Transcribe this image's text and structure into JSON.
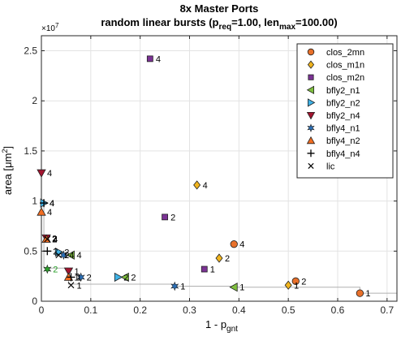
{
  "chart_data": {
    "type": "scatter",
    "title_main": "8x Master Ports",
    "title_sub": {
      "prefix": "random linear bursts (p",
      "sub1": "req",
      "middle": "=1.00, len",
      "sub2": "max",
      "suffix": "=100.00)"
    },
    "xlabel": {
      "base": "1 - p",
      "sub": "gnt"
    },
    "ylabel": {
      "base": "area [",
      "mid": "μm",
      "sup": "2",
      "end": "]"
    },
    "y_exponent_label": "×10",
    "y_exponent": "7",
    "xlim": [
      0,
      0.72
    ],
    "ylim": [
      0,
      2.65
    ],
    "x_ticks": [
      0,
      0.1,
      0.2,
      0.3,
      0.4,
      0.5,
      0.6,
      0.7
    ],
    "x_tick_labels": [
      "0",
      "0.1",
      "0.2",
      "0.3",
      "0.4",
      "0.5",
      "0.6",
      "0.7"
    ],
    "y_ticks": [
      0,
      0.5,
      1,
      1.5,
      2,
      2.5
    ],
    "y_tick_labels": [
      "0",
      "0.5",
      "1",
      "1.5",
      "2",
      "2.5"
    ],
    "grid": true,
    "legend_position": "top-right",
    "pareto_front": [
      [
        0,
        1.28
      ],
      [
        0,
        0.98
      ],
      [
        0.005,
        0.98
      ],
      [
        0.005,
        0.33
      ],
      [
        0.055,
        0.33
      ],
      [
        0.055,
        0.17
      ],
      [
        0.27,
        0.17
      ],
      [
        0.27,
        0.15
      ],
      [
        0.39,
        0.15
      ],
      [
        0.39,
        0.14
      ],
      [
        0.645,
        0.14
      ],
      [
        0.645,
        0.08
      ],
      [
        0.72,
        0.08
      ]
    ],
    "series": [
      {
        "name": "clos_2mn",
        "marker": "circle",
        "color": "#e8702a",
        "points": [
          {
            "x": 0.39,
            "y": 0.57,
            "label": "4"
          },
          {
            "x": 0.515,
            "y": 0.2,
            "label": "2"
          },
          {
            "x": 0.645,
            "y": 0.08,
            "label": "1"
          }
        ]
      },
      {
        "name": "clos_m1n",
        "marker": "diamond",
        "color": "#f0b41e",
        "points": [
          {
            "x": 0.315,
            "y": 1.16,
            "label": "4"
          },
          {
            "x": 0.36,
            "y": 0.43,
            "label": "2"
          },
          {
            "x": 0.5,
            "y": 0.16,
            "label": "1"
          }
        ]
      },
      {
        "name": "clos_m2n",
        "marker": "square",
        "color": "#7b3294",
        "points": [
          {
            "x": 0.22,
            "y": 2.42,
            "label": "4"
          },
          {
            "x": 0.25,
            "y": 0.84,
            "label": "2"
          },
          {
            "x": 0.33,
            "y": 0.32,
            "label": "1"
          }
        ]
      },
      {
        "name": "bfly2_n1",
        "marker": "triangle-left",
        "color": "#7fbf3f",
        "points": [
          {
            "x": 0.06,
            "y": 0.46,
            "label": "4"
          },
          {
            "x": 0.17,
            "y": 0.24,
            "label": "2"
          },
          {
            "x": 0.39,
            "y": 0.14,
            "label": "1"
          }
        ]
      },
      {
        "name": "bfly2_n2",
        "marker": "triangle-right",
        "color": "#3fb2e6",
        "points": [
          {
            "x": 0.005,
            "y": 0.98,
            "label": "4"
          },
          {
            "x": 0.155,
            "y": 0.24,
            "label": "2"
          },
          {
            "x": 0.035,
            "y": 0.49,
            "label": "2"
          }
        ]
      },
      {
        "name": "bfly2_n4",
        "marker": "triangle-down",
        "color": "#a2142f",
        "points": [
          {
            "x": 0.0,
            "y": 1.28,
            "label": "4"
          },
          {
            "x": 0.01,
            "y": 0.63,
            "label": "2"
          },
          {
            "x": 0.055,
            "y": 0.3,
            "label": "1"
          }
        ]
      },
      {
        "name": "bfly4_n1",
        "marker": "star",
        "color": "#2a6fb8",
        "points": [
          {
            "x": 0.27,
            "y": 0.15,
            "label": "1"
          },
          {
            "x": 0.08,
            "y": 0.24,
            "label": "2"
          },
          {
            "x": 0.045,
            "y": 0.46,
            "label": "4"
          }
        ]
      },
      {
        "name": "bfly4_n2",
        "marker": "triangle-up",
        "color": "#f26d21",
        "points": [
          {
            "x": 0.0,
            "y": 0.89,
            "label": "4"
          },
          {
            "x": 0.055,
            "y": 0.24,
            "label": "1"
          },
          {
            "x": 0.01,
            "y": 0.62,
            "label": "2"
          }
        ]
      },
      {
        "name": "bfly4_n4",
        "marker": "plus",
        "color": "#000000",
        "points": [
          {
            "x": 0.005,
            "y": 0.98,
            "label": "4"
          },
          {
            "x": 0.012,
            "y": 0.5,
            "label": "2"
          },
          {
            "x": 0.06,
            "y": 0.24,
            "label": "1"
          }
        ]
      },
      {
        "name": "lic",
        "marker": "cross",
        "color": "#000000",
        "points": [
          {
            "x": 0.012,
            "y": 0.62,
            "label": "4"
          },
          {
            "x": 0.035,
            "y": 0.46,
            "label": "2"
          },
          {
            "x": 0.06,
            "y": 0.16,
            "label": "1"
          }
        ]
      },
      {
        "name": "",
        "marker": "star",
        "color": "#2ca02c",
        "legend": false,
        "points": [
          {
            "x": 0.012,
            "y": 0.32,
            "label": "2",
            "label_color": "#2ca02c"
          }
        ]
      }
    ]
  }
}
